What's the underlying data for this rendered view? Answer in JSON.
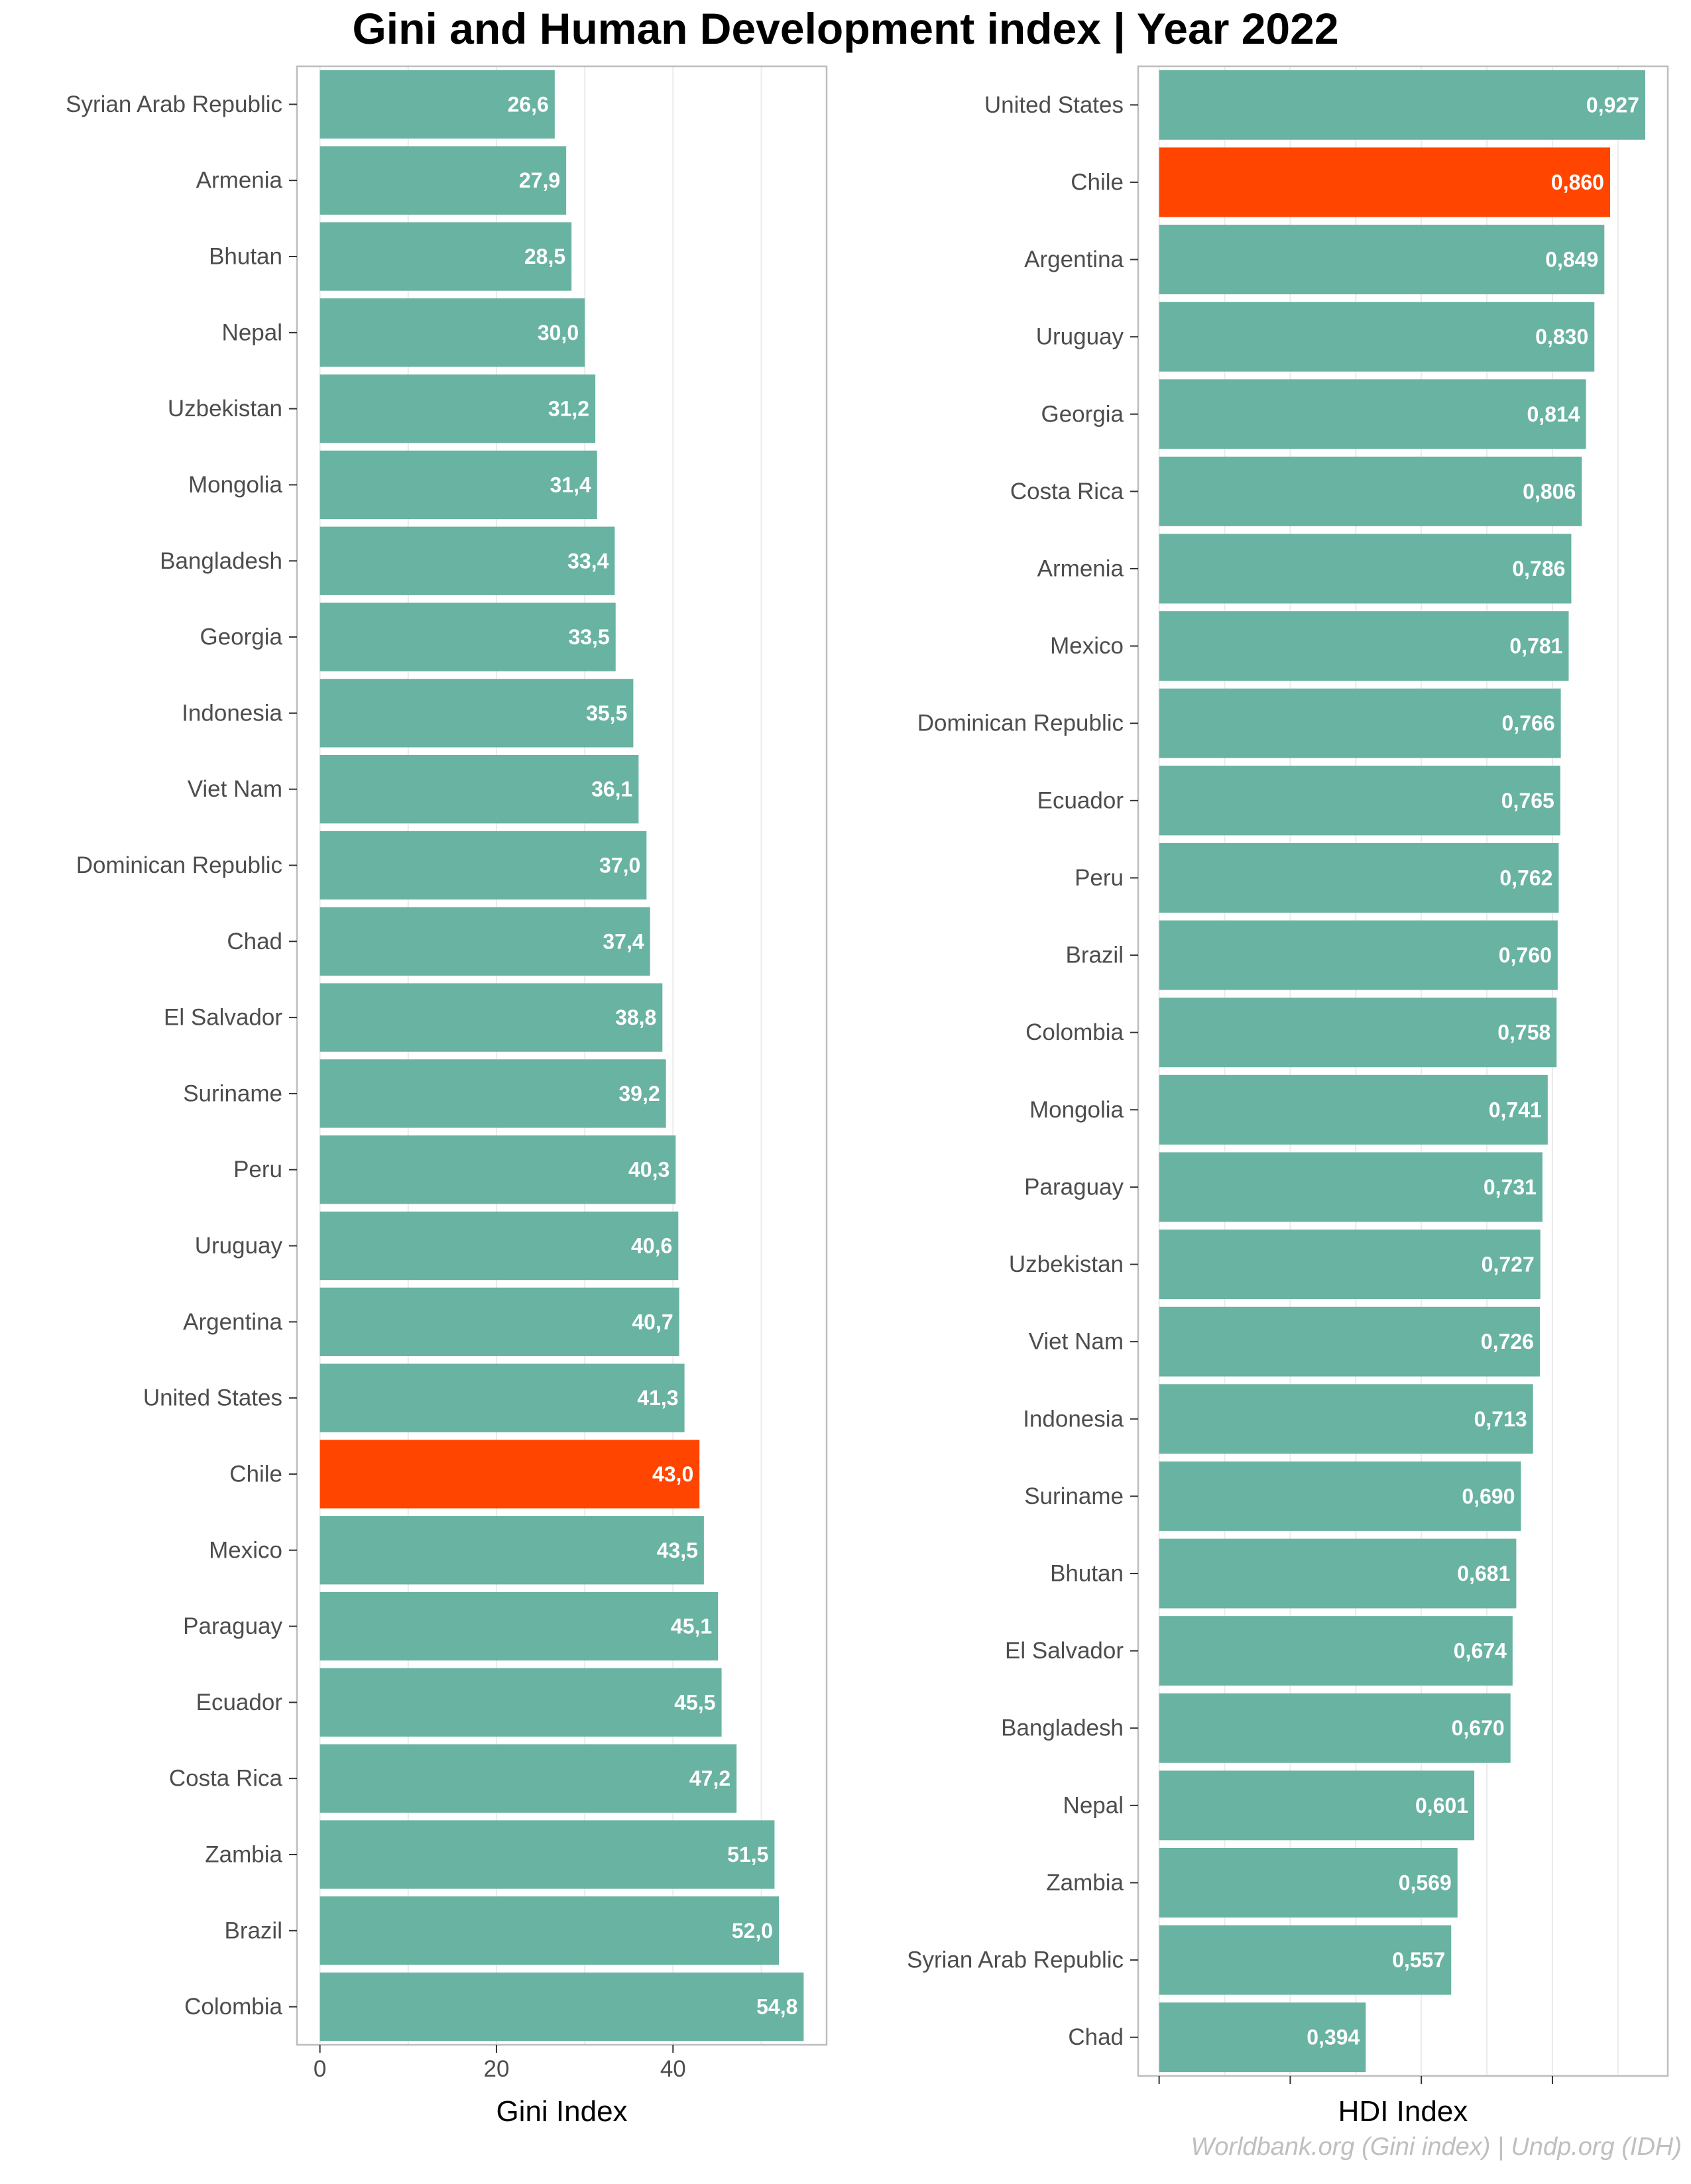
{
  "page": {
    "title": "Gini and Human Development index | Year 2022",
    "source": "Worldbank.org (Gini index) | Undp.org (IDH)"
  },
  "colors": {
    "bar": "#69b3a2",
    "highlight": "#ff4500",
    "bar_label": "#ffffff",
    "panel_border": "#bdbdbd",
    "grid": "#ebebeb",
    "axis_text": "#4d4d4d"
  },
  "chart_data": [
    {
      "type": "bar",
      "orientation": "horizontal",
      "xlabel": "Gini Index",
      "ylabel": "",
      "xlim": [
        -2.6,
        57.4
      ],
      "ticks": [
        0,
        20,
        40
      ],
      "tick_labels": [
        "0",
        "20",
        "40"
      ],
      "highlight": "Chile",
      "categories": [
        "Syrian Arab Republic",
        "Armenia",
        "Bhutan",
        "Nepal",
        "Uzbekistan",
        "Mongolia",
        "Bangladesh",
        "Georgia",
        "Indonesia",
        "Viet Nam",
        "Dominican Republic",
        "Chad",
        "El Salvador",
        "Suriname",
        "Peru",
        "Uruguay",
        "Argentina",
        "United States",
        "Chile",
        "Mexico",
        "Paraguay",
        "Ecuador",
        "Costa Rica",
        "Zambia",
        "Brazil",
        "Colombia"
      ],
      "values": [
        26.6,
        27.9,
        28.5,
        30.0,
        31.2,
        31.4,
        33.4,
        33.5,
        35.5,
        36.1,
        37.0,
        37.4,
        38.8,
        39.2,
        40.3,
        40.6,
        40.7,
        41.3,
        43.0,
        43.5,
        45.1,
        45.5,
        47.2,
        51.5,
        52.0,
        54.8
      ],
      "value_labels": [
        "26,6",
        "27,9",
        "28,5",
        "30,0",
        "31,2",
        "31,4",
        "33,4",
        "33,5",
        "35,5",
        "36,1",
        "37,0",
        "37,4",
        "38,8",
        "39,2",
        "40,3",
        "40,6",
        "40,7",
        "41,3",
        "43,0",
        "43,5",
        "45,1",
        "45,5",
        "47,2",
        "51,5",
        "52,0",
        "54,8"
      ]
    },
    {
      "type": "bar",
      "orientation": "horizontal",
      "xlabel": "HDI Index",
      "ylabel": "",
      "xlim": [
        -0.04,
        0.97
      ],
      "ticks": [
        0,
        0.25,
        0.5,
        0.75
      ],
      "tick_labels": [
        "",
        "",
        "",
        ""
      ],
      "highlight": "Chile",
      "categories": [
        "United States",
        "Chile",
        "Argentina",
        "Uruguay",
        "Georgia",
        "Costa Rica",
        "Armenia",
        "Mexico",
        "Dominican Republic",
        "Ecuador",
        "Peru",
        "Brazil",
        "Colombia",
        "Mongolia",
        "Paraguay",
        "Uzbekistan",
        "Viet Nam",
        "Indonesia",
        "Suriname",
        "Bhutan",
        "El Salvador",
        "Bangladesh",
        "Nepal",
        "Zambia",
        "Syrian Arab Republic",
        "Chad"
      ],
      "values": [
        0.927,
        0.86,
        0.849,
        0.83,
        0.814,
        0.806,
        0.786,
        0.781,
        0.766,
        0.765,
        0.762,
        0.76,
        0.758,
        0.741,
        0.731,
        0.727,
        0.726,
        0.713,
        0.69,
        0.681,
        0.674,
        0.67,
        0.601,
        0.569,
        0.557,
        0.394
      ],
      "value_labels": [
        "0,927",
        "0,860",
        "0,849",
        "0,830",
        "0,814",
        "0,806",
        "0,786",
        "0,781",
        "0,766",
        "0,765",
        "0,762",
        "0,760",
        "0,758",
        "0,741",
        "0,731",
        "0,727",
        "0,726",
        "0,713",
        "0,690",
        "0,681",
        "0,674",
        "0,670",
        "0,601",
        "0,569",
        "0,557",
        "0,394"
      ]
    }
  ]
}
